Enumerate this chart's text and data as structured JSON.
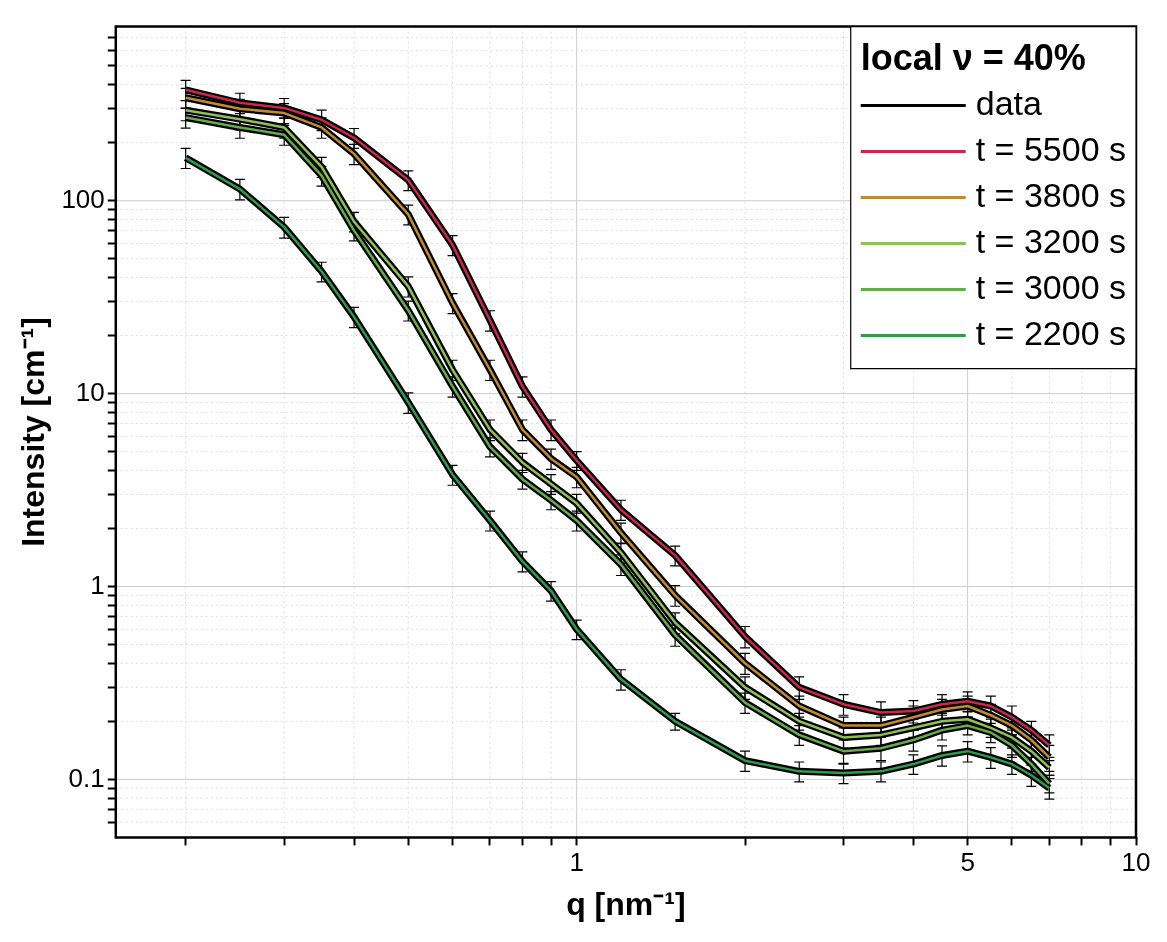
{
  "chart_data": {
    "type": "line",
    "xlabel": "q [nm⁻¹]",
    "ylabel": "Intensity [cm⁻¹]",
    "legend_title": "local ν = 40%",
    "legend": "top right",
    "grid": true,
    "log": "xy",
    "xlim": [
      0.15,
      10
    ],
    "ylim": [
      0.05,
      800
    ],
    "xticks": [
      {
        "value": 0.2,
        "label": null
      },
      {
        "value": 0.3,
        "label": null
      },
      {
        "value": 0.4,
        "label": null
      },
      {
        "value": 0.5,
        "label": null
      },
      {
        "value": 0.6,
        "label": null
      },
      {
        "value": 0.7,
        "label": null
      },
      {
        "value": 0.8,
        "label": null
      },
      {
        "value": 0.9,
        "label": null
      },
      1,
      {
        "value": 2,
        "label": null
      },
      {
        "value": 3,
        "label": null
      },
      {
        "value": 4,
        "label": null
      },
      5,
      {
        "value": 6,
        "label": null
      },
      {
        "value": 7,
        "label": null
      },
      {
        "value": 8,
        "label": null
      },
      {
        "value": 9,
        "label": null
      },
      10
    ],
    "yticks": [
      {
        "value": 0.06,
        "label": null
      },
      {
        "value": 0.07,
        "label": null
      },
      {
        "value": 0.08,
        "label": null
      },
      {
        "value": 0.09,
        "label": null
      },
      0.1,
      {
        "value": 0.2,
        "label": null
      },
      {
        "value": 0.3,
        "label": null
      },
      {
        "value": 0.4,
        "label": null
      },
      {
        "value": 0.5,
        "label": null
      },
      {
        "value": 0.6,
        "label": null
      },
      {
        "value": 0.7,
        "label": null
      },
      {
        "value": 0.8,
        "label": null
      },
      {
        "value": 0.9,
        "label": null
      },
      1,
      {
        "value": 2,
        "label": null
      },
      {
        "value": 3,
        "label": null
      },
      {
        "value": 4,
        "label": null
      },
      {
        "value": 5,
        "label": null
      },
      {
        "value": 6,
        "label": null
      },
      {
        "value": 7,
        "label": null
      },
      {
        "value": 8,
        "label": null
      },
      {
        "value": 9,
        "label": null
      },
      10,
      {
        "value": 20,
        "label": null
      },
      {
        "value": 30,
        "label": null
      },
      {
        "value": 40,
        "label": null
      },
      {
        "value": 50,
        "label": null
      },
      {
        "value": 60,
        "label": null
      },
      {
        "value": 70,
        "label": null
      },
      {
        "value": 80,
        "label": null
      },
      {
        "value": 90,
        "label": null
      },
      100,
      {
        "value": 200,
        "label": null
      },
      {
        "value": 300,
        "label": null
      },
      {
        "value": 400,
        "label": null
      },
      {
        "value": 500,
        "label": null
      },
      {
        "value": 600,
        "label": null
      },
      {
        "value": 700,
        "label": null
      }
    ],
    "x": [
      0.2,
      0.25,
      0.3,
      0.35,
      0.4,
      0.5,
      0.6,
      0.7,
      0.8,
      0.9,
      1,
      1.2,
      1.5,
      2,
      2.5,
      3,
      3.5,
      4,
      4.5,
      5,
      5.5,
      6,
      6.5,
      7
    ],
    "series": [
      {
        "name": "data",
        "color": "#000000",
        "values": [
          376,
          322,
          303,
          263,
          212,
          128,
          59,
          24,
          10.9,
          6.5,
          4.5,
          2.5,
          1.45,
          0.55,
          0.3,
          0.245,
          0.222,
          0.226,
          0.245,
          0.254,
          0.24,
          0.21,
          0.18,
          0.15
        ],
        "errors": [
          45,
          39,
          36,
          32,
          25,
          15,
          7,
          2.9,
          1.3,
          0.8,
          0.5,
          0.3,
          0.17,
          0.07,
          0.04,
          0.03,
          0.03,
          0.03,
          0.03,
          0.03,
          0.03,
          0.03,
          0.02,
          0.02
        ]
      },
      {
        "color": "#000000",
        "values": [
          342,
          300,
          285,
          240,
          175,
          85,
          29.5,
          13.3,
          6.5,
          4.6,
          3.7,
          1.9,
          0.9,
          0.4,
          0.24,
          0.19,
          0.19,
          0.21,
          0.23,
          0.24,
          0.215,
          0.19,
          0.16,
          0.13
        ],
        "errors": [
          41,
          36,
          34,
          29,
          21,
          10,
          3.5,
          1.6,
          0.8,
          0.55,
          0.45,
          0.23,
          0.11,
          0.05,
          0.03,
          0.02,
          0.02,
          0.03,
          0.03,
          0.03,
          0.03,
          0.02,
          0.02,
          0.02
        ]
      },
      {
        "color": "#000000",
        "values": [
          295,
          265,
          240,
          150,
          78,
          36,
          13.3,
          6.5,
          4.4,
          3.4,
          2.7,
          1.5,
          0.65,
          0.3,
          0.2,
          0.165,
          0.17,
          0.185,
          0.2,
          0.205,
          0.185,
          0.165,
          0.14,
          0.115
        ],
        "errors": [
          35,
          32,
          29,
          18,
          9,
          4.3,
          1.6,
          0.8,
          0.5,
          0.4,
          0.3,
          0.18,
          0.08,
          0.04,
          0.02,
          0.02,
          0.02,
          0.02,
          0.02,
          0.02,
          0.02,
          0.02,
          0.02,
          0.01
        ]
      },
      {
        "color": "#000000",
        "values": [
          270,
          240,
          220,
          135,
          70,
          27,
          10.9,
          5.3,
          3.6,
          2.8,
          2.2,
          1.3,
          0.56,
          0.25,
          0.17,
          0.14,
          0.145,
          0.16,
          0.18,
          0.19,
          0.175,
          0.15,
          0.12,
          0.095
        ],
        "errors": [
          32,
          29,
          26,
          16,
          8,
          3.2,
          1.3,
          0.6,
          0.4,
          0.3,
          0.26,
          0.16,
          0.07,
          0.03,
          0.02,
          0.02,
          0.02,
          0.02,
          0.02,
          0.02,
          0.02,
          0.02,
          0.01,
          0.01
        ]
      },
      {
        "color": "#000000",
        "values": [
          167,
          115,
          73,
          43,
          25,
          9,
          3.8,
          2.2,
          1.35,
          0.95,
          0.6,
          0.33,
          0.2,
          0.125,
          0.11,
          0.108,
          0.11,
          0.12,
          0.133,
          0.14,
          0.13,
          0.12,
          0.105,
          0.09
        ],
        "errors": [
          20,
          14,
          9,
          5,
          3,
          1.1,
          0.45,
          0.26,
          0.16,
          0.11,
          0.07,
          0.04,
          0.02,
          0.015,
          0.013,
          0.013,
          0.013,
          0.014,
          0.016,
          0.017,
          0.016,
          0.014,
          0.013,
          0.011
        ]
      },
      {
        "name": "t = 5500 s",
        "color": "#c8284a",
        "values": [
          376,
          322,
          303,
          263,
          212,
          128,
          59,
          24,
          10.9,
          6.5,
          4.5,
          2.5,
          1.45,
          0.55,
          0.3,
          0.245,
          0.222,
          0.226,
          0.245,
          0.254,
          0.24,
          0.21,
          0.18,
          0.15
        ]
      },
      {
        "name": "t = 3800 s",
        "color": "#c08a2e",
        "values": [
          342,
          300,
          285,
          240,
          175,
          85,
          29.5,
          13.3,
          6.5,
          4.6,
          3.7,
          1.9,
          0.9,
          0.4,
          0.24,
          0.19,
          0.19,
          0.21,
          0.23,
          0.24,
          0.215,
          0.19,
          0.16,
          0.13
        ]
      },
      {
        "name": "t = 3200 s",
        "color": "#8dc057",
        "values": [
          295,
          265,
          240,
          150,
          78,
          36,
          13.3,
          6.5,
          4.4,
          3.4,
          2.7,
          1.5,
          0.65,
          0.3,
          0.2,
          0.165,
          0.17,
          0.185,
          0.2,
          0.205,
          0.185,
          0.165,
          0.14,
          0.115
        ]
      },
      {
        "name": "t = 3000 s",
        "color": "#62ad4a",
        "values": [
          270,
          240,
          220,
          135,
          70,
          27,
          10.9,
          5.3,
          3.6,
          2.8,
          2.2,
          1.3,
          0.56,
          0.25,
          0.17,
          0.14,
          0.145,
          0.16,
          0.18,
          0.19,
          0.175,
          0.15,
          0.12,
          0.095
        ]
      },
      {
        "name": "t = 2200 s",
        "color": "#2f9a4c",
        "values": [
          167,
          115,
          73,
          43,
          25,
          9,
          3.8,
          2.2,
          1.35,
          0.95,
          0.6,
          0.33,
          0.2,
          0.125,
          0.11,
          0.108,
          0.11,
          0.12,
          0.133,
          0.14,
          0.13,
          0.12,
          0.105,
          0.09
        ]
      }
    ]
  }
}
